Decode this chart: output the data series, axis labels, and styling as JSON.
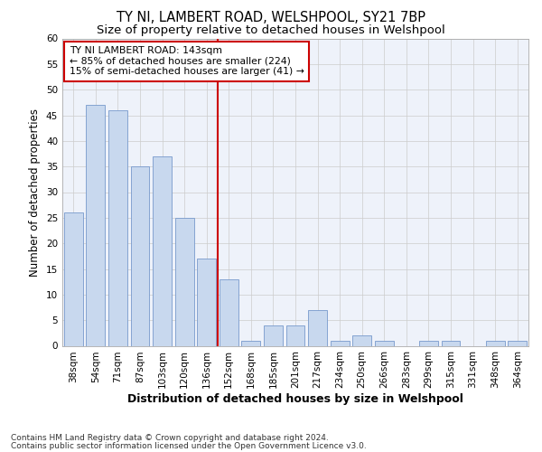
{
  "title": "TY NI, LAMBERT ROAD, WELSHPOOL, SY21 7BP",
  "subtitle": "Size of property relative to detached houses in Welshpool",
  "xlabel": "Distribution of detached houses by size in Welshpool",
  "ylabel": "Number of detached properties",
  "categories": [
    "38sqm",
    "54sqm",
    "71sqm",
    "87sqm",
    "103sqm",
    "120sqm",
    "136sqm",
    "152sqm",
    "168sqm",
    "185sqm",
    "201sqm",
    "217sqm",
    "234sqm",
    "250sqm",
    "266sqm",
    "283sqm",
    "299sqm",
    "315sqm",
    "331sqm",
    "348sqm",
    "364sqm"
  ],
  "values": [
    26,
    47,
    46,
    35,
    37,
    25,
    17,
    13,
    1,
    4,
    4,
    7,
    1,
    2,
    1,
    0,
    1,
    1,
    0,
    1,
    1
  ],
  "bar_color": "#c8d8ee",
  "bar_edge_color": "#7799cc",
  "vline_pos": 6.5,
  "vline_color": "#cc0000",
  "ylim": [
    0,
    60
  ],
  "yticks": [
    0,
    5,
    10,
    15,
    20,
    25,
    30,
    35,
    40,
    45,
    50,
    55,
    60
  ],
  "annotation_title": "TY NI LAMBERT ROAD: 143sqm",
  "annotation_line1": "← 85% of detached houses are smaller (224)",
  "annotation_line2": "15% of semi-detached houses are larger (41) →",
  "annotation_box_color": "#ffffff",
  "annotation_box_edge": "#cc0000",
  "footer_line1": "Contains HM Land Registry data © Crown copyright and database right 2024.",
  "footer_line2": "Contains public sector information licensed under the Open Government Licence v3.0.",
  "bg_color": "#eef2fa",
  "title_fontsize": 10.5,
  "subtitle_fontsize": 9.5,
  "ylabel_fontsize": 8.5,
  "xlabel_fontsize": 9,
  "tick_fontsize": 7.5,
  "ann_fontsize": 7.8,
  "footer_fontsize": 6.5
}
